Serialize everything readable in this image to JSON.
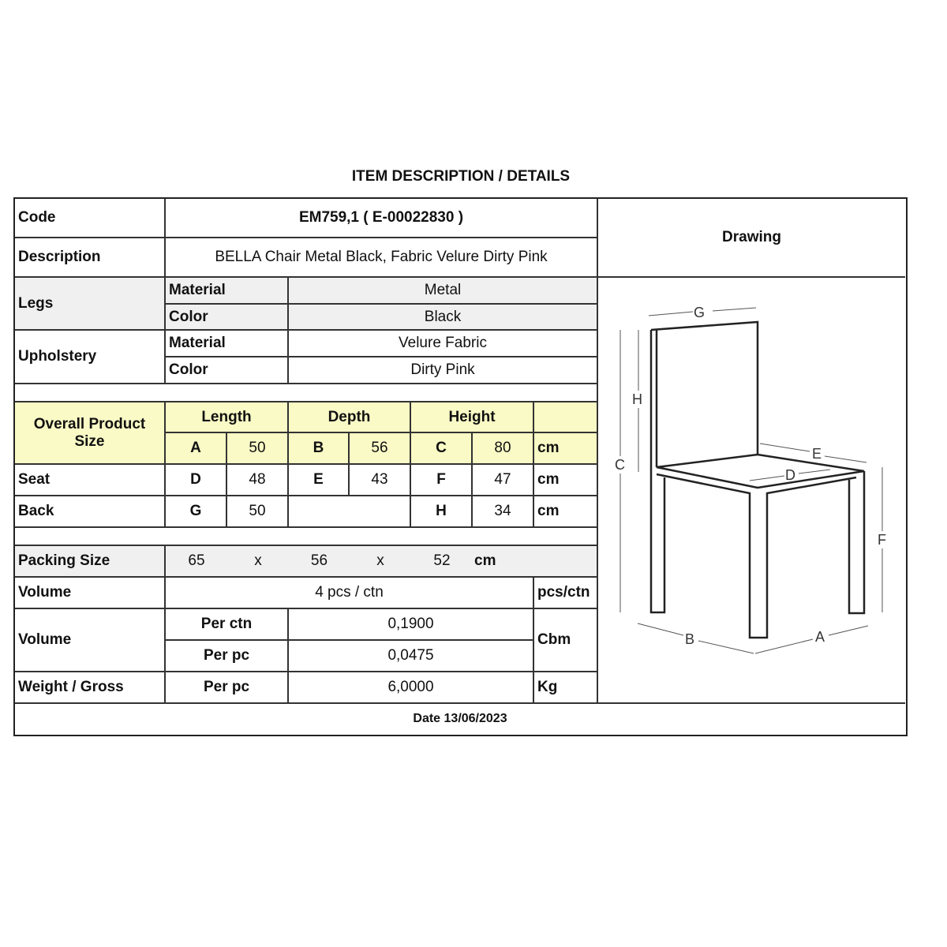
{
  "title": "ITEM DESCRIPTION / DETAILS",
  "code": {
    "label": "Code",
    "value": "EM759,1  ( E-00022830 )"
  },
  "description": {
    "label": "Description",
    "value": "BELLA Chair Metal Black, Fabric Velure Dirty Pink"
  },
  "drawing_label": "Drawing",
  "legs": {
    "label": "Legs",
    "material_label": "Material",
    "material": "Metal",
    "color_label": "Color",
    "color": "Black"
  },
  "upholstery": {
    "label": "Upholstery",
    "material_label": "Material",
    "material": "Velure Fabric",
    "color_label": "Color",
    "color": "Dirty Pink"
  },
  "overall": {
    "label": "Overall Product Size",
    "length": "Length",
    "depth": "Depth",
    "height": "Height",
    "a": "A",
    "a_val": "50",
    "b": "B",
    "b_val": "56",
    "c": "C",
    "c_val": "80",
    "unit": "cm"
  },
  "seat": {
    "label": "Seat",
    "d": "D",
    "d_val": "48",
    "e": "E",
    "e_val": "43",
    "f": "F",
    "f_val": "47",
    "unit": "cm"
  },
  "back": {
    "label": "Back",
    "g": "G",
    "g_val": "50",
    "h": "H",
    "h_val": "34",
    "unit": "cm"
  },
  "packing": {
    "label": "Packing Size",
    "l": "65",
    "x1": "x",
    "d": "56",
    "x2": "x",
    "h": "52",
    "unit": "cm"
  },
  "volume_pcs": {
    "label": "Volume",
    "value": "4 pcs / ctn",
    "unit": "pcs/ctn"
  },
  "volume_cbm": {
    "label": "Volume",
    "per_ctn_label": "Per ctn",
    "per_ctn": "0,1900",
    "per_pc_label": "Per pc",
    "per_pc": "0,0475",
    "unit": "Cbm"
  },
  "weight": {
    "label": "Weight / Gross",
    "per_pc_label": "Per pc",
    "value": "6,0000",
    "unit": "Kg"
  },
  "date": "Date 13/06/2023",
  "drawing_letters": {
    "a": "A",
    "b": "B",
    "c": "C",
    "d": "D",
    "e": "E",
    "f": "F",
    "g": "G",
    "h": "H"
  },
  "colors": {
    "header_yellow": "#fafac6",
    "row_grey": "#f0f0f0"
  }
}
